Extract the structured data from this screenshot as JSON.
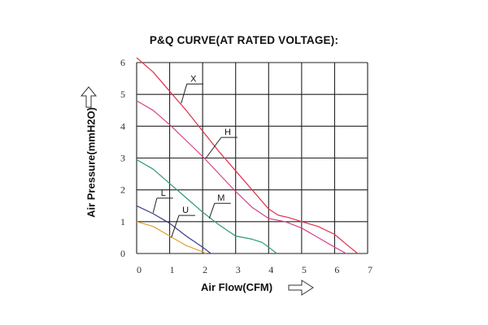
{
  "chart_data": {
    "type": "line",
    "title": "P&Q CURVE(AT RATED VOLTAGE):",
    "xlabel": "Air Flow(CFM)",
    "ylabel": "Air Pressure(mmH2O)",
    "xlim": [
      0,
      7
    ],
    "ylim": [
      0,
      6
    ],
    "grid": true,
    "x_ticks": [
      "0",
      "1",
      "2",
      "3",
      "4",
      "5",
      "6",
      "7"
    ],
    "y_ticks": [
      "0",
      "1",
      "2",
      "3",
      "4",
      "5",
      "6"
    ],
    "series": [
      {
        "name": "X",
        "color": "#e0304a",
        "points": [
          [
            0,
            6.15
          ],
          [
            0.5,
            5.7
          ],
          [
            1,
            5.1
          ],
          [
            1.5,
            4.5
          ],
          [
            2,
            3.85
          ],
          [
            2.5,
            3.2
          ],
          [
            3,
            2.6
          ],
          [
            3.5,
            2.0
          ],
          [
            4,
            1.4
          ],
          [
            4.3,
            1.2
          ],
          [
            4.6,
            1.13
          ],
          [
            5,
            1.0
          ],
          [
            5.5,
            0.85
          ],
          [
            6,
            0.6
          ],
          [
            6.4,
            0.25
          ],
          [
            6.7,
            0
          ]
        ],
        "annotation": {
          "label_at": [
            1.72,
            5.43
          ],
          "points_to": [
            1.35,
            4.72
          ]
        }
      },
      {
        "name": "H",
        "color": "#d8408a",
        "points": [
          [
            0,
            4.8
          ],
          [
            0.5,
            4.5
          ],
          [
            1,
            4.05
          ],
          [
            1.5,
            3.55
          ],
          [
            2,
            3.05
          ],
          [
            2.5,
            2.5
          ],
          [
            3,
            1.95
          ],
          [
            3.5,
            1.45
          ],
          [
            4,
            1.1
          ],
          [
            4.5,
            1.0
          ],
          [
            5,
            0.8
          ],
          [
            5.5,
            0.5
          ],
          [
            6,
            0.2
          ],
          [
            6.35,
            0
          ]
        ],
        "annotation": {
          "label_at": [
            2.76,
            3.75
          ],
          "points_to": [
            2.1,
            3.0
          ]
        }
      },
      {
        "name": "M",
        "color": "#2e9a6e",
        "points": [
          [
            0,
            2.95
          ],
          [
            0.5,
            2.65
          ],
          [
            1,
            2.2
          ],
          [
            1.5,
            1.75
          ],
          [
            2,
            1.3
          ],
          [
            2.5,
            0.9
          ],
          [
            3,
            0.55
          ],
          [
            3.5,
            0.45
          ],
          [
            3.8,
            0.35
          ],
          [
            4,
            0.2
          ],
          [
            4.25,
            0
          ]
        ],
        "annotation": {
          "label_at": [
            2.56,
            1.68
          ],
          "points_to": [
            2.2,
            1.1
          ]
        }
      },
      {
        "name": "L",
        "color": "#3a3a8a",
        "points": [
          [
            0,
            1.5
          ],
          [
            0.5,
            1.25
          ],
          [
            1,
            0.95
          ],
          [
            1.5,
            0.55
          ],
          [
            2,
            0.2
          ],
          [
            2.25,
            0
          ]
        ],
        "annotation": {
          "label_at": [
            0.81,
            1.84
          ],
          "points_to": [
            0.5,
            1.28
          ]
        }
      },
      {
        "name": "U",
        "color": "#e0a030",
        "points": [
          [
            0,
            1.0
          ],
          [
            0.5,
            0.85
          ],
          [
            1,
            0.55
          ],
          [
            1.5,
            0.25
          ],
          [
            2,
            0.05
          ],
          [
            2.1,
            0
          ]
        ],
        "annotation": {
          "label_at": [
            1.48,
            1.3
          ],
          "points_to": [
            1.05,
            0.5
          ]
        }
      }
    ]
  }
}
